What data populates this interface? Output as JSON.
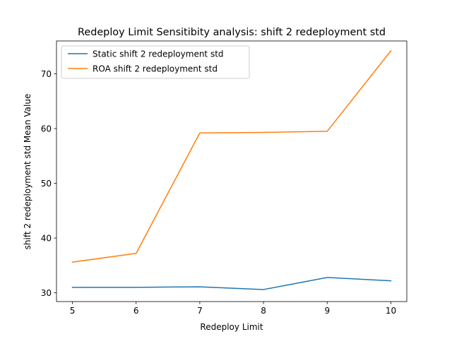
{
  "chart_data": {
    "type": "line",
    "title": "Redeploy Limit Sensitibity analysis: shift 2 redeployment std",
    "xlabel": "Redeploy Limit",
    "ylabel": "shift 2 redeployment std Mean Value",
    "x": [
      5,
      6,
      7,
      8,
      9,
      10
    ],
    "xlim": [
      4.75,
      10.25
    ],
    "ylim": [
      28.4,
      76.0
    ],
    "x_ticks": [
      "5",
      "6",
      "7",
      "8",
      "9",
      "10"
    ],
    "y_ticks": [
      "30",
      "40",
      "50",
      "60",
      "70"
    ],
    "y_tick_values": [
      30,
      40,
      50,
      60,
      70
    ],
    "grid": false,
    "legend_position": "upper left",
    "series": [
      {
        "name": "Static shift 2 redeployment std",
        "color": "#1f77b4",
        "values": [
          31.0,
          31.0,
          31.1,
          30.6,
          32.8,
          32.2
        ]
      },
      {
        "name": "ROA shift 2 redeployment std",
        "color": "#ff7f0e",
        "values": [
          35.6,
          37.2,
          59.2,
          59.3,
          59.5,
          74.2
        ]
      }
    ]
  }
}
